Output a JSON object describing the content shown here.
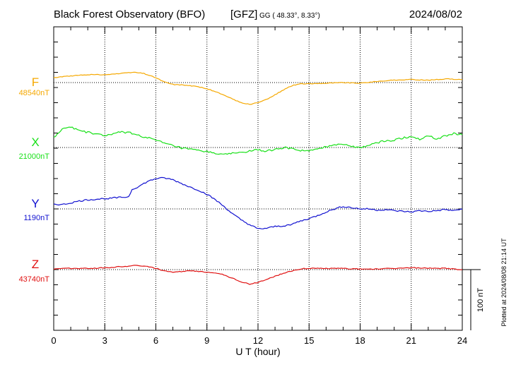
{
  "header": {
    "title": "Black Forest Observatory (BFO)",
    "agency": "[GFZ]",
    "coords": "GG ( 48.33°,   8.33°)",
    "date": "2024/08/02"
  },
  "footer": {
    "plotted": "Plotted at 2024/08/08 21:14 UT",
    "scale_label": "100 nT"
  },
  "colors": {
    "F": "#f5a800",
    "X": "#18e018",
    "Y": "#1010d0",
    "Z": "#e01010"
  },
  "chart_data": {
    "type": "line",
    "xlabel": "U T (hour)",
    "xlim": [
      0,
      24
    ],
    "x_ticks": [
      "0",
      "3",
      "6",
      "9",
      "12",
      "15",
      "18",
      "21",
      "24"
    ],
    "scale_bar_nT": 100,
    "series": [
      {
        "name": "F",
        "baseline_label": "48540nT",
        "baseline": 48540,
        "points": [
          [
            0,
            48548
          ],
          [
            1,
            48551
          ],
          [
            2,
            48553
          ],
          [
            3,
            48553
          ],
          [
            4,
            48555
          ],
          [
            4.7,
            48557
          ],
          [
            5.3,
            48555
          ],
          [
            6,
            48548
          ],
          [
            6.5,
            48541
          ],
          [
            7,
            48537
          ],
          [
            7.5,
            48536
          ],
          [
            8,
            48535
          ],
          [
            8.5,
            48533
          ],
          [
            9,
            48530
          ],
          [
            9.5,
            48525
          ],
          [
            10,
            48519
          ],
          [
            10.5,
            48513
          ],
          [
            11,
            48507
          ],
          [
            11.5,
            48504
          ],
          [
            12,
            48507
          ],
          [
            12.5,
            48512
          ],
          [
            13,
            48520
          ],
          [
            13.5,
            48528
          ],
          [
            14,
            48535
          ],
          [
            14.5,
            48538
          ],
          [
            15,
            48538
          ],
          [
            16,
            48539
          ],
          [
            17,
            48540
          ],
          [
            18,
            48539
          ],
          [
            19,
            48542
          ],
          [
            20,
            48544
          ],
          [
            21,
            48545
          ],
          [
            22,
            48544
          ],
          [
            23,
            48546
          ],
          [
            24,
            48545
          ]
        ]
      },
      {
        "name": "X",
        "baseline_label": "21000nT",
        "baseline": 21000,
        "points": [
          [
            0,
            21016
          ],
          [
            0.5,
            21030
          ],
          [
            1,
            21034
          ],
          [
            1.5,
            21028
          ],
          [
            2,
            21025
          ],
          [
            2.5,
            21022
          ],
          [
            3,
            21020
          ],
          [
            3.5,
            21022
          ],
          [
            4,
            21026
          ],
          [
            4.5,
            21024
          ],
          [
            5,
            21020
          ],
          [
            5.5,
            21016
          ],
          [
            6,
            21012
          ],
          [
            6.5,
            21007
          ],
          [
            7,
            21003
          ],
          [
            7.5,
            20999
          ],
          [
            8,
            20997
          ],
          [
            8.5,
            20995
          ],
          [
            9,
            20993
          ],
          [
            9.5,
            20991
          ],
          [
            10,
            20988
          ],
          [
            10.5,
            20990
          ],
          [
            11,
            20992
          ],
          [
            11.5,
            20994
          ],
          [
            12,
            20996
          ],
          [
            12.5,
            20994
          ],
          [
            13,
            20996
          ],
          [
            13.5,
            21000
          ],
          [
            14,
            20998
          ],
          [
            14.5,
            20995
          ],
          [
            15,
            20994
          ],
          [
            15.5,
            20997
          ],
          [
            16,
            21001
          ],
          [
            16.5,
            21005
          ],
          [
            17,
            21006
          ],
          [
            17.5,
            21002
          ],
          [
            18,
            20999
          ],
          [
            18.5,
            21004
          ],
          [
            19,
            21008
          ],
          [
            19.5,
            21011
          ],
          [
            20,
            21012
          ],
          [
            20.5,
            21016
          ],
          [
            21,
            21018
          ],
          [
            21.5,
            21014
          ],
          [
            22,
            21020
          ],
          [
            22.5,
            21014
          ],
          [
            23,
            21019
          ],
          [
            23.5,
            21023
          ],
          [
            24,
            21021
          ]
        ]
      },
      {
        "name": "Y",
        "baseline_label": "1190nT",
        "baseline": 1190,
        "points": [
          [
            0,
            1198
          ],
          [
            0.5,
            1197
          ],
          [
            1,
            1200
          ],
          [
            1.5,
            1203
          ],
          [
            2,
            1205
          ],
          [
            2.5,
            1206
          ],
          [
            3,
            1207
          ],
          [
            3.5,
            1208
          ],
          [
            4,
            1209
          ],
          [
            4.4,
            1210
          ],
          [
            4.6,
            1222
          ],
          [
            5,
            1227
          ],
          [
            5.5,
            1235
          ],
          [
            6,
            1240
          ],
          [
            6.5,
            1241
          ],
          [
            7,
            1238
          ],
          [
            7.5,
            1232
          ],
          [
            8,
            1226
          ],
          [
            8.5,
            1221
          ],
          [
            9,
            1214
          ],
          [
            9.5,
            1205
          ],
          [
            10,
            1194
          ],
          [
            10.5,
            1182
          ],
          [
            11,
            1172
          ],
          [
            11.5,
            1164
          ],
          [
            12,
            1157
          ],
          [
            12.5,
            1158
          ],
          [
            13,
            1161
          ],
          [
            13.5,
            1162
          ],
          [
            14,
            1165
          ],
          [
            14.5,
            1170
          ],
          [
            15,
            1174
          ],
          [
            15.5,
            1179
          ],
          [
            16,
            1185
          ],
          [
            16.5,
            1190
          ],
          [
            17,
            1194
          ],
          [
            17.5,
            1192
          ],
          [
            18,
            1190
          ],
          [
            18.5,
            1190
          ],
          [
            19,
            1188
          ],
          [
            19.5,
            1189
          ],
          [
            20,
            1187
          ],
          [
            20.5,
            1186
          ],
          [
            21,
            1185
          ],
          [
            21.5,
            1187
          ],
          [
            22,
            1186
          ],
          [
            22.5,
            1187
          ],
          [
            23,
            1189
          ],
          [
            23.5,
            1187
          ],
          [
            24,
            1190
          ]
        ]
      },
      {
        "name": "Z",
        "baseline_label": "43740nT",
        "baseline": 43740,
        "points": [
          [
            0,
            43741
          ],
          [
            1,
            43742
          ],
          [
            2,
            43742
          ],
          [
            3,
            43743
          ],
          [
            4,
            43745
          ],
          [
            5,
            43747
          ],
          [
            5.5,
            43745
          ],
          [
            6,
            43742
          ],
          [
            6.5,
            43738
          ],
          [
            7,
            43735
          ],
          [
            7.5,
            43737
          ],
          [
            8,
            43738
          ],
          [
            8.5,
            43737
          ],
          [
            9,
            43736
          ],
          [
            9.5,
            43735
          ],
          [
            10,
            43731
          ],
          [
            10.5,
            43726
          ],
          [
            11,
            43720
          ],
          [
            11.5,
            43716
          ],
          [
            12,
            43719
          ],
          [
            12.5,
            43724
          ],
          [
            13,
            43729
          ],
          [
            13.5,
            43734
          ],
          [
            14,
            43738
          ],
          [
            14.5,
            43741
          ],
          [
            15,
            43742
          ],
          [
            16,
            43742
          ],
          [
            17,
            43742
          ],
          [
            18,
            43741
          ],
          [
            19,
            43741
          ],
          [
            20,
            43742
          ],
          [
            21,
            43743
          ],
          [
            22,
            43742
          ],
          [
            23,
            43742
          ],
          [
            24,
            43740
          ]
        ]
      }
    ]
  }
}
